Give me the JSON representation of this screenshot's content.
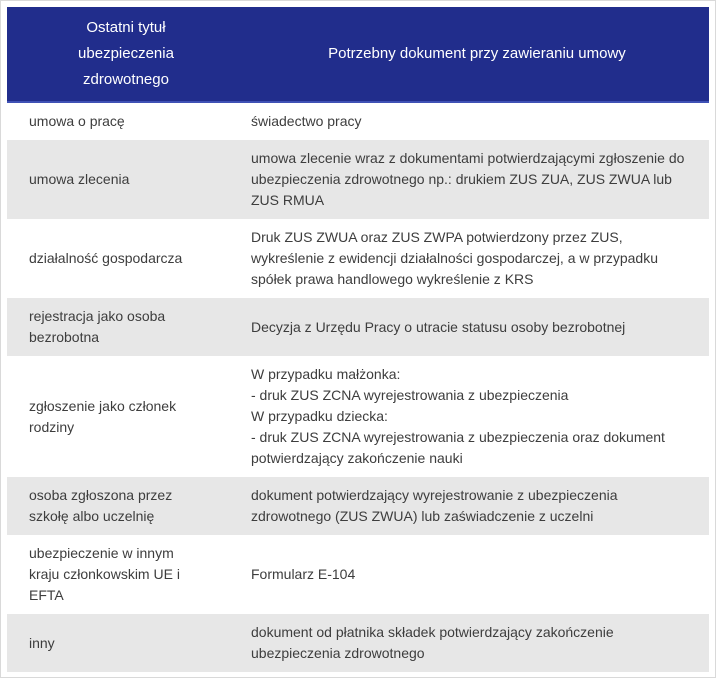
{
  "colors": {
    "header_bg": "#212d8c",
    "header_edge": "#3f51b5",
    "row_bg": "#ffffff",
    "row_alt_bg": "#e7e7e7",
    "text": "#3d3d3d",
    "header_text": "#ffffff",
    "outer_border": "#d9d9d9"
  },
  "table": {
    "header": {
      "col1": "Ostatni tytuł ubezpieczenia zdrowotnego",
      "col2": "Potrzebny dokument przy zawieraniu umowy"
    },
    "rows": [
      {
        "title": "umowa o pracę",
        "doc": "świadectwo pracy"
      },
      {
        "title": "umowa zlecenia",
        "doc": "umowa zlecenie wraz z dokumentami potwierdzającymi zgłoszenie do ubezpieczenia zdrowotnego np.: drukiem ZUS ZUA, ZUS ZWUA lub ZUS RMUA"
      },
      {
        "title": "działalność gospodarcza",
        "doc": "Druk ZUS ZWUA oraz ZUS ZWPA potwierdzony przez ZUS, wykreślenie z ewidencji działalności gospodarczej, a w przypadku spółek prawa handlowego wykreślenie z KRS"
      },
      {
        "title": "rejestracja jako osoba bezrobotna",
        "doc": "Decyzja z Urzędu Pracy o utracie statusu osoby bezrobotnej"
      },
      {
        "title": "zgłoszenie jako członek rodziny",
        "doc": "W przypadku małżonka:\n- druk ZUS ZCNA wyrejestrowania z ubezpieczenia\nW przypadku dziecka:\n- druk ZUS ZCNA wyrejestrowania z ubezpieczenia oraz dokument potwierdzający zakończenie nauki"
      },
      {
        "title": "osoba zgłoszona przez szkołę albo uczelnię",
        "doc": "dokument potwierdzający wyrejestrowanie z ubezpieczenia zdrowotnego (ZUS ZWUA) lub zaświadczenie z uczelni"
      },
      {
        "title": "ubezpieczenie w innym kraju członkowskim UE i EFTA",
        "doc": "Formularz E-104"
      },
      {
        "title": "inny",
        "doc": "dokument od płatnika składek potwierdzający zakończenie ubezpieczenia zdrowotnego"
      }
    ]
  }
}
